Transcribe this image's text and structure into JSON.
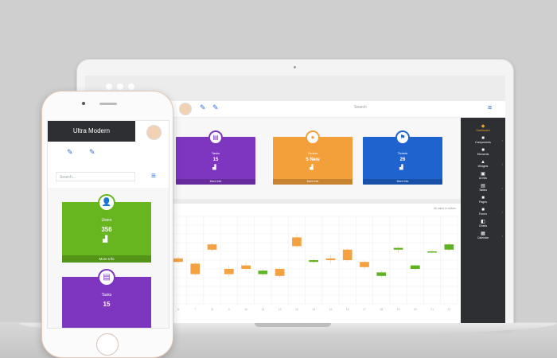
{
  "colors": {
    "green": "#67b51f",
    "purple": "#7e35c0",
    "orange": "#f3a03b",
    "blue": "#1f63cf",
    "dark": "#2d2f33",
    "candle_up": "#5db321",
    "candle_down": "#f4a141"
  },
  "laptop": {
    "search_label": "Search",
    "cards": [
      {
        "label": "",
        "value": "",
        "more": "",
        "color": "#67b51f",
        "icon": "user-icon"
      },
      {
        "label": "Tasks",
        "value": "15",
        "more": "More Info",
        "color": "#7e35c0",
        "icon": "task-icon"
      },
      {
        "label": "Orders",
        "value": "5 New",
        "more": "More Info",
        "color": "#f3a03b",
        "icon": "cart-icon"
      },
      {
        "label": "Tickets",
        "value": "26",
        "more": "More Info",
        "color": "#1f63cf",
        "icon": "ticket-icon"
      }
    ],
    "chart_tag": "All sales in dollars",
    "sidebar": {
      "items": [
        {
          "label": "Dashboard",
          "icon": "dashboard-icon",
          "active": true
        },
        {
          "label": "Components",
          "icon": "component-icon"
        },
        {
          "label": "Elements",
          "icon": "elements-icon"
        },
        {
          "label": "Widgets",
          "icon": "widget-icon"
        },
        {
          "label": "Ui Kits",
          "icon": "kit-icon"
        },
        {
          "label": "Tables",
          "icon": "table-icon"
        },
        {
          "label": "Pages",
          "icon": "page-icon"
        },
        {
          "label": "Forms",
          "icon": "form-icon"
        },
        {
          "label": "Charts",
          "icon": "chart-icon"
        },
        {
          "label": "Calendar",
          "icon": "calendar-icon"
        }
      ]
    }
  },
  "phone": {
    "title": "Ultra Modern",
    "search_placeholder": "Search...",
    "cards": [
      {
        "label": "Users",
        "value": "356",
        "more": "More Info",
        "color": "#67b51f",
        "icon": "user-icon"
      },
      {
        "label": "Tasks",
        "value": "15",
        "more": "",
        "color": "#7e35c0",
        "icon": "task-icon"
      }
    ]
  },
  "chart_data": {
    "type": "candlestick",
    "title": "",
    "xlabel": "",
    "ylabel": "",
    "ylim": [
      0,
      100
    ],
    "grid": true,
    "x": [
      "1",
      "2",
      "3",
      "4",
      "5",
      "6",
      "7",
      "8",
      "9",
      "10",
      "11",
      "12",
      "13",
      "14",
      "15",
      "16",
      "17",
      "18",
      "19",
      "20",
      "21",
      "22"
    ],
    "open": [
      38,
      36,
      58,
      56,
      64,
      52,
      46,
      68,
      40,
      44,
      34,
      40,
      76,
      48,
      52,
      62,
      48,
      32,
      62,
      40,
      60,
      62
    ],
    "close": [
      30,
      42,
      52,
      52,
      60,
      48,
      34,
      62,
      34,
      40,
      38,
      32,
      66,
      50,
      50,
      50,
      42,
      36,
      64,
      44,
      60,
      68
    ],
    "high": [
      42,
      44,
      60,
      58,
      66,
      54,
      48,
      70,
      44,
      48,
      40,
      42,
      80,
      52,
      56,
      64,
      50,
      38,
      66,
      46,
      62,
      70
    ],
    "low": [
      28,
      34,
      50,
      50,
      58,
      46,
      32,
      60,
      30,
      38,
      32,
      30,
      64,
      46,
      46,
      48,
      40,
      30,
      58,
      38,
      58,
      60
    ]
  }
}
